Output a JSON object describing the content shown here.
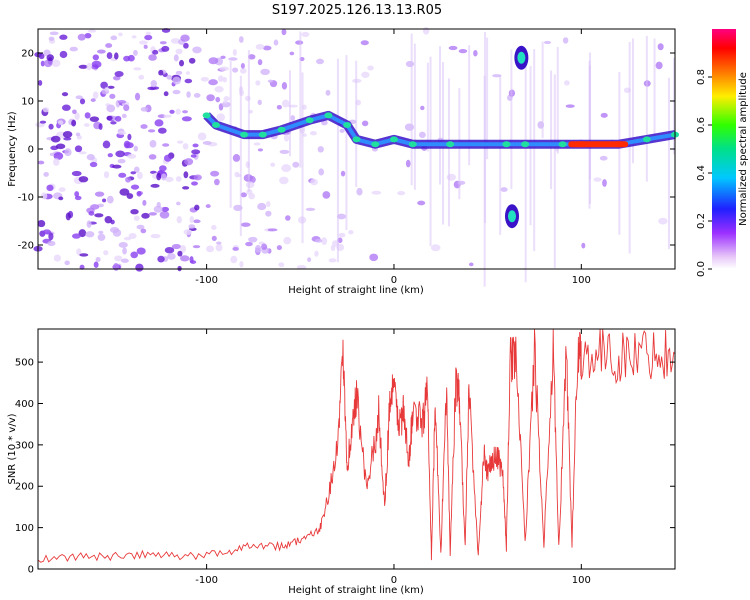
{
  "title": "S197.2025.126.13.13.R05",
  "chart_data": [
    {
      "type": "heatmap",
      "xlabel": "Height of straight line (km)",
      "ylabel": "Frequency (Hz)",
      "xlim": [
        -190,
        150
      ],
      "ylim": [
        -25,
        25
      ],
      "xticks": [
        -100,
        0,
        100
      ],
      "yticks": [
        -20,
        -10,
        0,
        10,
        20
      ],
      "colorbar": {
        "label": "Normalized spectral amplitude",
        "range": [
          0,
          1
        ],
        "ticks": [
          "0.0",
          "0.2",
          "0.4",
          "0.6",
          "0.8"
        ]
      },
      "ridge": [
        {
          "x": -100,
          "y": 7
        },
        {
          "x": -95,
          "y": 5
        },
        {
          "x": -80,
          "y": 3
        },
        {
          "x": -70,
          "y": 3
        },
        {
          "x": -60,
          "y": 4
        },
        {
          "x": -45,
          "y": 6
        },
        {
          "x": -35,
          "y": 7
        },
        {
          "x": -25,
          "y": 5
        },
        {
          "x": -20,
          "y": 2
        },
        {
          "x": -10,
          "y": 1
        },
        {
          "x": 0,
          "y": 2
        },
        {
          "x": 10,
          "y": 1
        },
        {
          "x": 30,
          "y": 1
        },
        {
          "x": 60,
          "y": 1
        },
        {
          "x": 70,
          "y": 1
        },
        {
          "x": 90,
          "y": 1
        },
        {
          "x": 100,
          "y": 1
        },
        {
          "x": 120,
          "y": 1
        },
        {
          "x": 135,
          "y": 2
        },
        {
          "x": 150,
          "y": 3
        }
      ],
      "spots": [
        {
          "x": 68,
          "y": 19
        },
        {
          "x": 63,
          "y": -14
        }
      ]
    },
    {
      "type": "line",
      "xlabel": "Height of straight line (km)",
      "ylabel": "SNR (10 * v/v)",
      "xlim": [
        -190,
        150
      ],
      "ylim": [
        0,
        580
      ],
      "xticks": [
        -100,
        0,
        100
      ],
      "yticks": [
        0,
        100,
        200,
        300,
        400,
        500
      ],
      "color": "#e8393a",
      "x": [
        -190,
        -170,
        -150,
        -130,
        -110,
        -90,
        -75,
        -60,
        -50,
        -40,
        -35,
        -30,
        -27,
        -25,
        -22,
        -20,
        -15,
        -10,
        -8,
        -5,
        -2,
        0,
        3,
        5,
        8,
        10,
        15,
        18,
        20,
        22,
        25,
        28,
        30,
        33,
        35,
        38,
        40,
        45,
        48,
        50,
        52,
        55,
        58,
        60,
        62,
        65,
        70,
        75,
        80,
        85,
        88,
        92,
        95,
        98,
        100,
        110,
        120,
        130,
        140,
        150
      ],
      "values": [
        25,
        30,
        30,
        35,
        30,
        40,
        60,
        55,
        70,
        90,
        180,
        300,
        520,
        250,
        350,
        420,
        200,
        300,
        380,
        150,
        420,
        430,
        350,
        380,
        250,
        390,
        350,
        430,
        30,
        400,
        30,
        450,
        40,
        460,
        400,
        50,
        440,
        30,
        280,
        230,
        260,
        270,
        240,
        50,
        500,
        530,
        60,
        530,
        60,
        520,
        50,
        530,
        60,
        530,
        520,
        520,
        510,
        520,
        525,
        520
      ]
    }
  ]
}
